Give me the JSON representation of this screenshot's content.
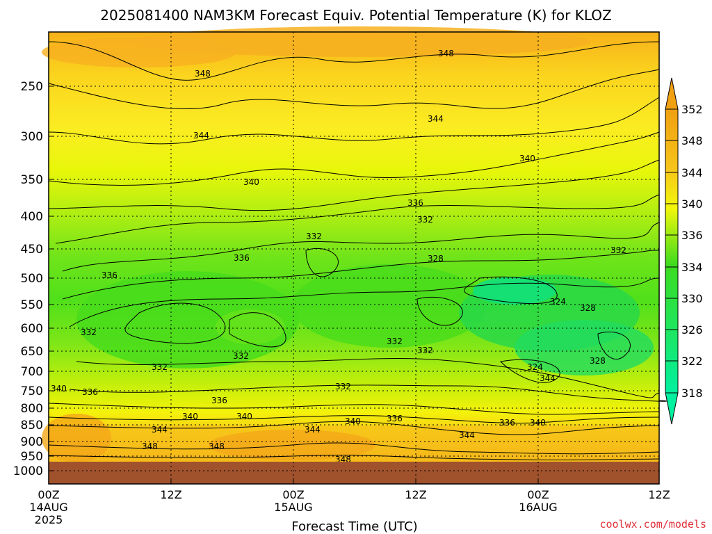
{
  "chart_data": {
    "type": "heatmap",
    "title": "2025081400 NAM3KM Forecast Equiv. Potential Temperature (K) for KLOZ",
    "xlabel": "Forecast Time (UTC)",
    "ylabel": "",
    "y_ticks": [
      "250",
      "300",
      "350",
      "400",
      "450",
      "500",
      "550",
      "600",
      "650",
      "700",
      "750",
      "800",
      "850",
      "900",
      "950",
      "1000"
    ],
    "x_ticks": [
      {
        "line1": "00Z",
        "line2": "14AUG",
        "line3": "2025"
      },
      {
        "line1": "12Z",
        "line2": "",
        "line3": ""
      },
      {
        "line1": "00Z",
        "line2": "15AUG",
        "line3": ""
      },
      {
        "line1": "12Z",
        "line2": "",
        "line3": ""
      },
      {
        "line1": "00Z",
        "line2": "16AUG",
        "line3": ""
      },
      {
        "line1": "12Z",
        "line2": "",
        "line3": ""
      }
    ],
    "colorbar": {
      "levels": [
        "352",
        "348",
        "344",
        "340",
        "336",
        "334",
        "330",
        "326",
        "322",
        "318"
      ],
      "colors": [
        "#f0a010",
        "#f7c21a",
        "#fbe62a",
        "#f2f70a",
        "#c8f00a",
        "#80e61a",
        "#3cdc1e",
        "#18d848",
        "#10e07a",
        "#00f0a0"
      ]
    },
    "contour_labels": [
      "348",
      "348",
      "344",
      "344",
      "340",
      "340",
      "336",
      "336",
      "332",
      "332",
      "328",
      "324",
      "328",
      "332",
      "332",
      "332",
      "336",
      "340",
      "336",
      "344",
      "340",
      "344",
      "348",
      "348",
      "332",
      "324",
      "328",
      "336",
      "340",
      "332",
      "332",
      "332",
      "336",
      "340",
      "344",
      "336",
      "344",
      "340",
      "348"
    ]
  },
  "credit": "coolwx.com/models"
}
